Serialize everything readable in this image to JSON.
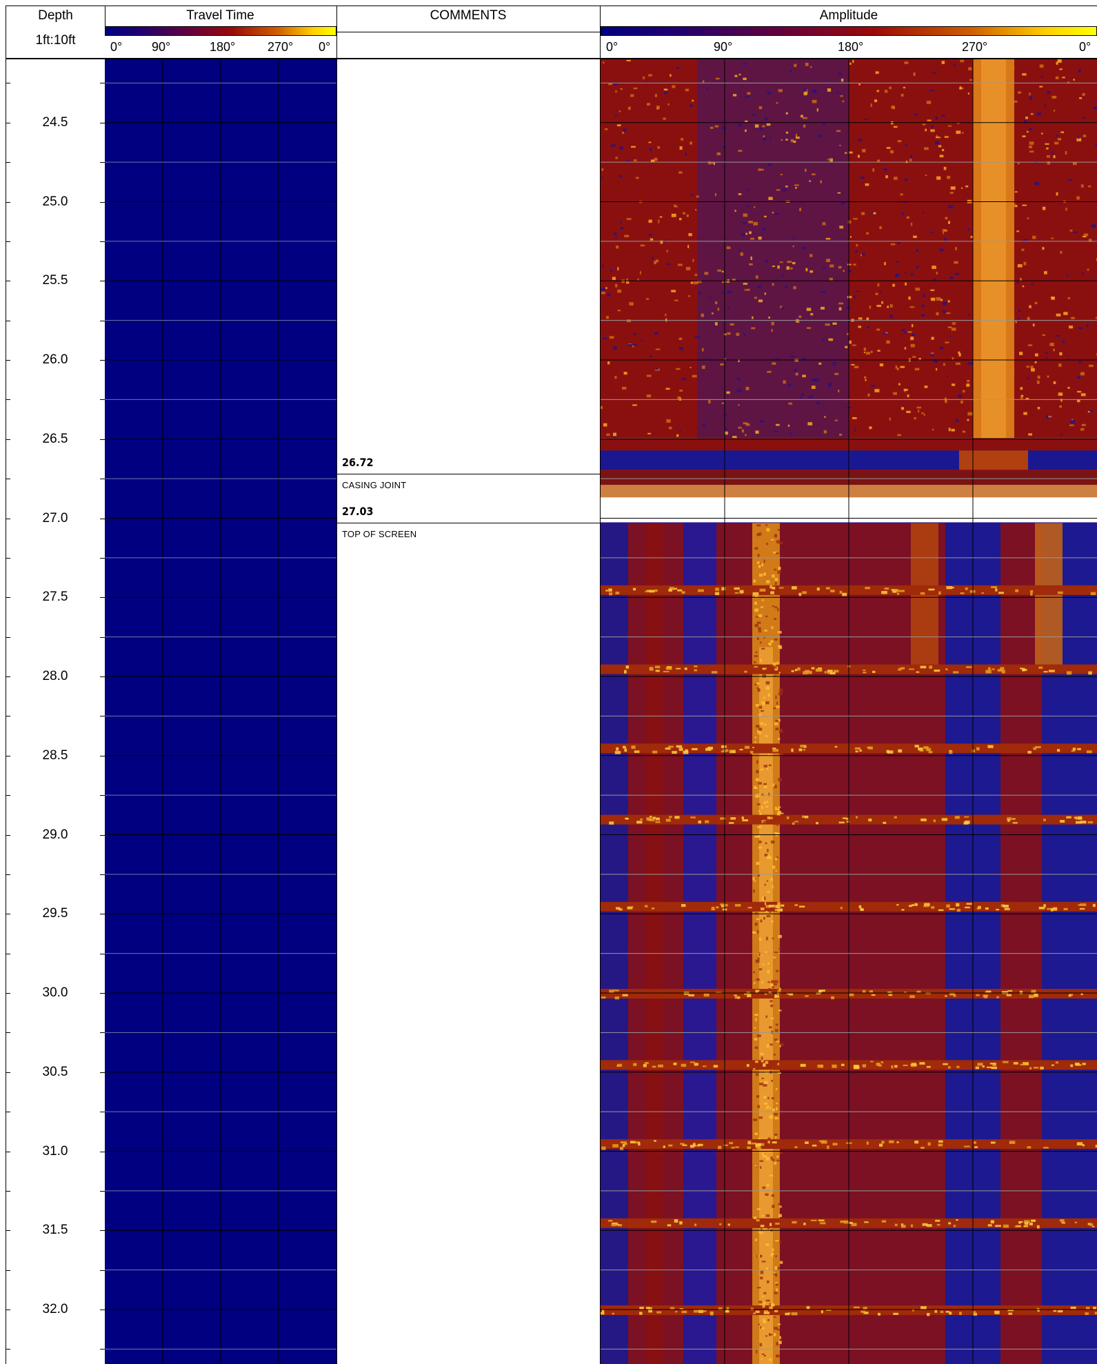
{
  "header": {
    "depth_title": "Depth",
    "depth_scale": "1ft:10ft",
    "travel_time_title": "Travel Time",
    "comments_title": "COMMENTS",
    "amplitude_title": "Amplitude"
  },
  "travel_time_ticks": [
    "0°",
    "90°",
    "180°",
    "270°",
    "0°"
  ],
  "amplitude_ticks": [
    "0°",
    "90°",
    "180°",
    "270°",
    "0°"
  ],
  "colors": {
    "scale_low": "#000080",
    "scale_mid_1": "#400060",
    "scale_mid_2": "#8b0000",
    "scale_mid_3": "#c05000",
    "scale_high": "#ffff00",
    "travel_time_fill": "#000080"
  },
  "chart_data": {
    "type": "heatmap",
    "depth_unit": "ft",
    "depth_range": [
      24.0,
      32.25
    ],
    "depth_tick_labels": [
      "24.5",
      "25.0",
      "25.5",
      "26.0",
      "26.5",
      "27.0",
      "27.5",
      "28.0",
      "28.5",
      "29.0",
      "29.5",
      "30.0",
      "30.5",
      "31.0",
      "31.5",
      "32.0"
    ],
    "depth_tick_values": [
      24.5,
      25.0,
      25.5,
      26.0,
      26.5,
      27.0,
      27.5,
      28.0,
      28.5,
      29.0,
      29.5,
      30.0,
      30.5,
      31.0,
      31.5,
      32.0
    ],
    "azimuth_range_deg": [
      0,
      360
    ],
    "comments": [
      {
        "depth": "26.72",
        "text": "CASING JOINT",
        "depth_value": 26.72
      },
      {
        "depth": "27.03",
        "text": "TOP OF SCREEN",
        "depth_value": 27.03
      }
    ],
    "amplitude_features": {
      "casing_joint_depth": 26.72,
      "screen_top_depth": 27.03,
      "bright_vertical_band_azimuth_deg": [
        270,
        300
      ],
      "screen_band_azimuth_deg": [
        110,
        130
      ],
      "screen_slot_rows_depth": [
        27.45,
        27.95,
        28.45,
        28.9,
        29.45,
        30.0,
        30.45,
        30.95,
        31.45,
        32.0
      ]
    }
  }
}
